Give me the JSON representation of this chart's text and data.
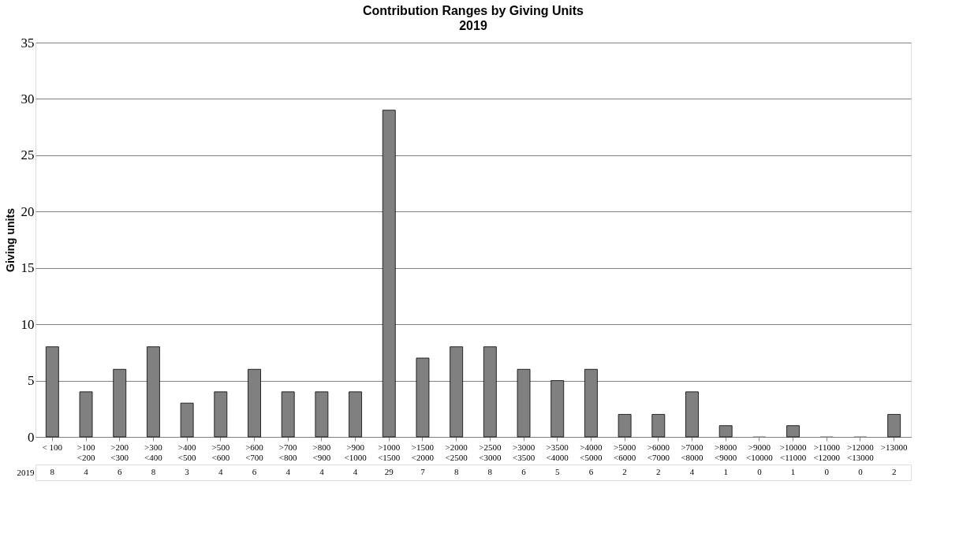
{
  "chart_data": {
    "type": "bar",
    "title": "Contribution Ranges by Giving Units",
    "subtitle": "2019",
    "ylabel": "Giving units",
    "categories": [
      "< 100",
      ">100\n<200",
      ">200\n<300",
      ">300\n<400",
      ">400\n<500",
      ">500\n<600",
      ">600\n<700",
      ">700\n<800",
      ">800\n<900",
      ">900\n<1000",
      ">1000\n<1500",
      ">1500\n<2000",
      ">2000\n<2500",
      ">2500\n<3000",
      ">3000\n<3500",
      ">3500\n<4000",
      ">4000\n<5000",
      ">5000\n<6000",
      ">6000\n<7000",
      ">7000\n<8000",
      ">8000\n<9000",
      ">9000\n<10000",
      ">10000\n<11000",
      ">11000\n<12000",
      ">12000\n<13000",
      ">13000"
    ],
    "series": [
      {
        "name": "2019",
        "color": "#808080",
        "values": [
          8,
          4,
          6,
          8,
          3,
          4,
          6,
          4,
          4,
          4,
          29,
          7,
          8,
          8,
          6,
          5,
          6,
          2,
          2,
          4,
          1,
          0,
          1,
          0,
          0,
          2
        ]
      }
    ],
    "ylim": [
      0,
      35
    ],
    "yticks": [
      0,
      5,
      10,
      15,
      20,
      25,
      30,
      35
    ],
    "grid": "y",
    "data_labels": true,
    "legend": false
  }
}
